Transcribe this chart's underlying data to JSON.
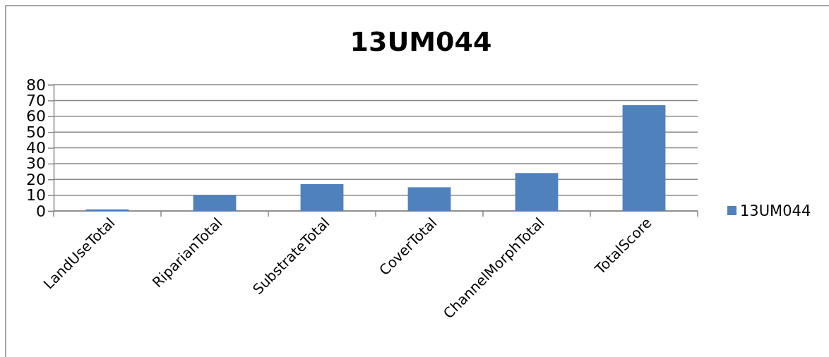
{
  "chart_data": {
    "type": "bar",
    "title": "13UM044",
    "categories": [
      "LandUseTotal",
      "RiparianTotal",
      "SubstrateTotal",
      "CoverTotal",
      "ChannelMorphTotal",
      "TotalScore"
    ],
    "series": [
      {
        "name": "13UM044",
        "color": "#4f81bd",
        "values": [
          1,
          10,
          17,
          15,
          24,
          67
        ]
      }
    ],
    "ylim": [
      0,
      80
    ],
    "yticks": [
      0,
      10,
      20,
      30,
      40,
      50,
      60,
      70,
      80
    ],
    "grid": "y",
    "legend": "right"
  }
}
